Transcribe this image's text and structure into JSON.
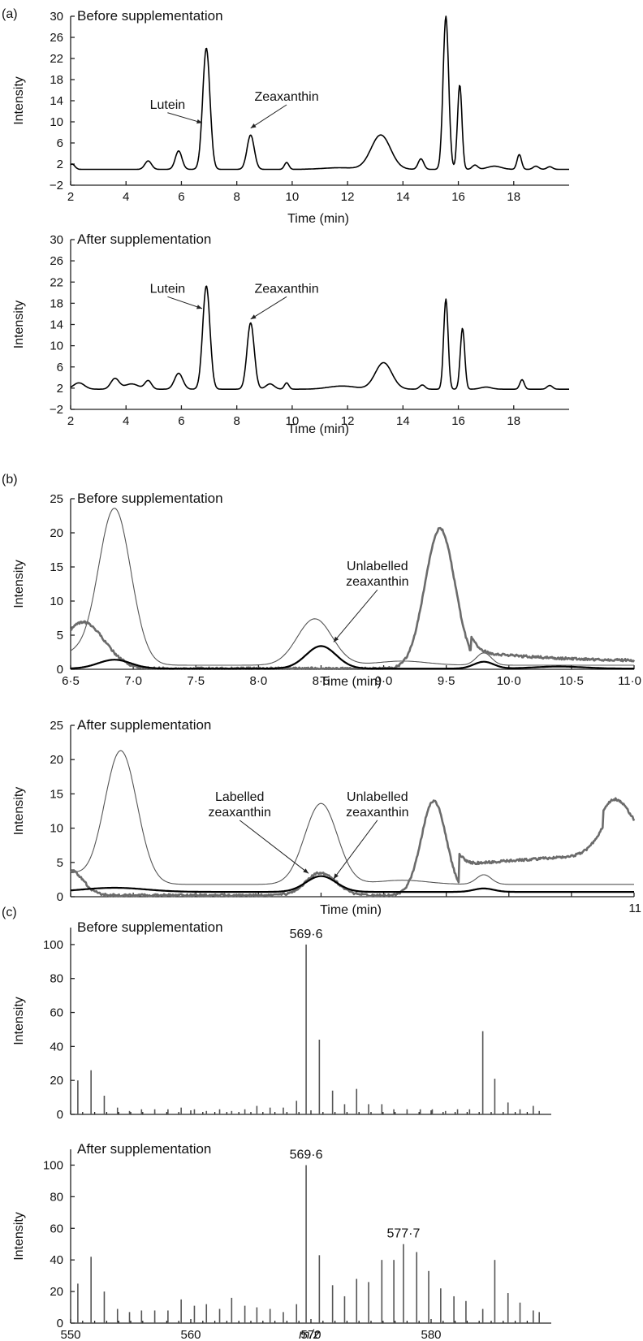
{
  "panel_labels": [
    "(a)",
    "(b)",
    "(c)"
  ],
  "colors": {
    "ink": "#111111",
    "thin_trace": "#555555",
    "thick_grey_trace": "#6b6b6b",
    "black_trace": "#000000"
  },
  "chart_data": [
    {
      "panel": "(a)",
      "type": "line",
      "title": "Before supplementation",
      "xlabel": "Time (min)",
      "ylabel": "Intensity",
      "xlim": [
        2,
        20
      ],
      "ylim": [
        -2,
        30
      ],
      "xticks": [
        2,
        4,
        6,
        8,
        10,
        12,
        14,
        16,
        18
      ],
      "yticks": [
        -2,
        2,
        6,
        10,
        14,
        18,
        22,
        26,
        30
      ],
      "xtick_labels": [
        "2",
        "4",
        "6",
        "8",
        "10",
        "12",
        "14",
        "16",
        "18"
      ],
      "ytick_labels": [
        "−2",
        "2",
        "6",
        "10",
        "14",
        "18",
        "22",
        "26",
        "30"
      ],
      "annotations": [
        {
          "text": "Lutein",
          "x": 6.9,
          "y": 24,
          "text_at": [
            5.5,
            12.5
          ],
          "arrow_to": [
            6.75,
            9.8
          ]
        },
        {
          "text": "Zeaxanthin",
          "x": 8.5,
          "y": 7.5,
          "text_at": [
            9.8,
            14
          ],
          "arrow_to": [
            8.5,
            8.8
          ]
        }
      ],
      "series": [
        {
          "style": "black",
          "baseline": 1.0,
          "peaks": [
            [
              2.05,
              1.0,
              0.1
            ],
            [
              4.8,
              1.6,
              0.12
            ],
            [
              5.9,
              3.5,
              0.12
            ],
            [
              6.9,
              23,
              0.13
            ],
            [
              8.5,
              6.5,
              0.13
            ],
            [
              9.8,
              1.3,
              0.08
            ],
            [
              11.7,
              0.3,
              0.6
            ],
            [
              13.2,
              6.5,
              0.35
            ],
            [
              14.65,
              2.0,
              0.1
            ],
            [
              15.55,
              29,
              0.1
            ],
            [
              16.05,
              16,
              0.08
            ],
            [
              16.6,
              0.8,
              0.1
            ],
            [
              17.3,
              0.6,
              0.25
            ],
            [
              18.2,
              2.8,
              0.08
            ],
            [
              18.8,
              0.6,
              0.1
            ],
            [
              19.3,
              0.5,
              0.1
            ]
          ]
        }
      ]
    },
    {
      "panel": "(a)",
      "type": "line",
      "title": "After supplementation",
      "xlabel": "Time (min)",
      "ylabel": "Intensity",
      "xlim": [
        2,
        20
      ],
      "ylim": [
        -2,
        30
      ],
      "xticks": [
        2,
        4,
        6,
        8,
        10,
        12,
        14,
        16,
        18
      ],
      "yticks": [
        -2,
        2,
        6,
        10,
        14,
        18,
        22,
        26,
        30
      ],
      "xtick_labels": [
        "2",
        "4",
        "6",
        "8",
        "10",
        "12",
        "14",
        "16",
        "18"
      ],
      "ytick_labels": [
        "−2",
        "2",
        "6",
        "10",
        "14",
        "18",
        "22",
        "26",
        "30"
      ],
      "annotations": [
        {
          "text": "Lutein",
          "x": 6.9,
          "y": 21,
          "text_at": [
            5.5,
            20
          ],
          "arrow_to": [
            6.75,
            17
          ]
        },
        {
          "text": "Zeaxanthin",
          "x": 8.5,
          "y": 14,
          "text_at": [
            9.8,
            20
          ],
          "arrow_to": [
            8.5,
            15
          ]
        }
      ],
      "series": [
        {
          "style": "black",
          "baseline": 1.8,
          "peaks": [
            [
              2.3,
              1.2,
              0.2
            ],
            [
              3.6,
              2.0,
              0.15
            ],
            [
              4.2,
              1.0,
              0.25
            ],
            [
              4.8,
              1.6,
              0.12
            ],
            [
              5.9,
              3.0,
              0.15
            ],
            [
              6.9,
              19.5,
              0.13
            ],
            [
              8.5,
              12.5,
              0.13
            ],
            [
              9.2,
              1.0,
              0.15
            ],
            [
              9.8,
              1.2,
              0.08
            ],
            [
              11.8,
              0.6,
              0.5
            ],
            [
              13.3,
              5.0,
              0.3
            ],
            [
              14.7,
              0.8,
              0.1
            ],
            [
              15.55,
              17,
              0.08
            ],
            [
              16.15,
              11.5,
              0.08
            ],
            [
              17.0,
              0.4,
              0.2
            ],
            [
              18.3,
              1.8,
              0.08
            ],
            [
              19.3,
              0.7,
              0.1
            ]
          ]
        }
      ]
    },
    {
      "panel": "(b)",
      "type": "line",
      "title": "Before supplementation",
      "xlabel": "Time (min)",
      "ylabel": "Intensity",
      "xlim": [
        6.5,
        11.0
      ],
      "ylim": [
        0,
        25
      ],
      "xticks": [
        6.5,
        7.0,
        7.5,
        8.0,
        8.5,
        9.0,
        9.5,
        10.0,
        10.5,
        11.0
      ],
      "yticks": [
        0,
        5,
        10,
        15,
        20,
        25
      ],
      "xtick_labels": [
        "6·5",
        "7·0",
        "7·5",
        "8·0",
        "8·5",
        "9·0",
        "9·5",
        "10·0",
        "10·5",
        "11·0"
      ],
      "ytick_labels": [
        "0",
        "5",
        "10",
        "15",
        "20",
        "25"
      ],
      "annotations": [
        {
          "text": "Unlabelled zeaxanthin",
          "x": 8.5,
          "y": 3.3,
          "text_at": [
            8.95,
            14.5
          ],
          "arrow_to": [
            8.6,
            4.0
          ]
        }
      ],
      "series": [
        {
          "style": "thin",
          "baseline": 0.6,
          "peaks": [
            [
              6.85,
              23,
              0.13
            ],
            [
              6.5,
              1.5,
              0.1
            ],
            [
              8.45,
              6.8,
              0.14
            ],
            [
              9.15,
              0.6,
              0.2
            ],
            [
              9.8,
              1.8,
              0.06
            ]
          ]
        },
        {
          "style": "thick",
          "baseline": 0.1,
          "peaks": [
            [
              6.6,
              6.8,
              0.17
            ],
            [
              9.45,
              20.5,
              0.12
            ]
          ],
          "tail": {
            "from": 9.7,
            "level": 2.5,
            "decay": 1.5,
            "floor": 1.0
          }
        },
        {
          "style": "black",
          "baseline": 0.1,
          "peaks": [
            [
              6.85,
              1.3,
              0.13
            ],
            [
              8.5,
              3.3,
              0.12
            ],
            [
              9.8,
              1.0,
              0.08
            ],
            [
              10.4,
              0.3,
              0.2
            ]
          ]
        }
      ]
    },
    {
      "panel": "(b)",
      "type": "line",
      "title": "After supplementation",
      "xlabel": "Time (min)",
      "ylabel": "Intensity",
      "xlim": [
        6.5,
        11.0
      ],
      "ylim": [
        0,
        25
      ],
      "xticks": [
        6.5,
        7.0,
        7.5,
        8.0,
        8.5,
        9.0,
        9.5,
        10.0,
        10.5,
        11.0
      ],
      "yticks": [
        0,
        5,
        10,
        15,
        20,
        25
      ],
      "xtick_labels": [
        "",
        "",
        "",
        "",
        "",
        "",
        "",
        "",
        "",
        "11"
      ],
      "ytick_labels": [
        "0",
        "5",
        "10",
        "15",
        "20",
        "25"
      ],
      "annotations": [
        {
          "text": "Labelled zeaxanthin",
          "x": 8.5,
          "y": 3.5,
          "text_at": [
            7.85,
            14
          ],
          "arrow_to": [
            8.4,
            3.4
          ]
        },
        {
          "text": "Unlabelled zeaxanthin",
          "x": 8.5,
          "y": 3.0,
          "text_at": [
            8.95,
            14
          ],
          "arrow_to": [
            8.6,
            2.6
          ]
        }
      ],
      "series": [
        {
          "style": "thin",
          "baseline": 1.8,
          "peaks": [
            [
              6.5,
              1.5,
              0.1
            ],
            [
              6.9,
              19.5,
              0.13
            ],
            [
              8.5,
              11.8,
              0.13
            ],
            [
              9.15,
              0.6,
              0.2
            ],
            [
              9.8,
              1.4,
              0.06
            ]
          ]
        },
        {
          "style": "thick",
          "baseline": 0.2,
          "peaks": [
            [
              6.5,
              3.6,
              0.1
            ],
            [
              8.5,
              3.3,
              0.12
            ],
            [
              9.4,
              13.8,
              0.1
            ],
            [
              10.85,
              5.5,
              0.12
            ]
          ],
          "tail": {
            "from": 9.6,
            "level": 4.5,
            "decay": 0,
            "floor": 4.5,
            "ramp_to": 6.0,
            "ramp_end": 10.75,
            "after": 8.5
          }
        },
        {
          "style": "black",
          "baseline": 0.7,
          "peaks": [
            [
              6.85,
              0.6,
              0.25
            ],
            [
              8.5,
              2.3,
              0.12
            ],
            [
              9.8,
              0.5,
              0.08
            ]
          ]
        }
      ]
    },
    {
      "panel": "(c)",
      "type": "bar",
      "title": "Before supplementation",
      "xlabel": "",
      "ylabel": "Intensity",
      "xlim": [
        550,
        590
      ],
      "ylim": [
        0,
        110
      ],
      "xticks": [
        550,
        560,
        570,
        580
      ],
      "yticks": [
        0,
        20,
        40,
        60,
        80,
        100
      ],
      "xtick_labels": [
        "",
        "",
        "",
        ""
      ],
      "ytick_labels": [
        "0",
        "20",
        "40",
        "60",
        "80",
        "100"
      ],
      "annotations": [
        {
          "text": "569·6",
          "x": 569.6,
          "y": 100
        }
      ],
      "x": [
        550.6,
        551.7,
        552.8,
        553.9,
        554.9,
        555.9,
        557.0,
        558.1,
        559.2,
        560.3,
        561.3,
        562.4,
        563.4,
        564.5,
        565.5,
        566.6,
        567.7,
        568.8,
        569.6,
        570.7,
        571.8,
        572.8,
        573.8,
        574.8,
        575.9,
        576.9,
        578.0,
        579.1,
        580.1,
        581.2,
        582.2,
        583.2,
        584.3,
        585.3,
        586.4,
        587.4,
        588.5,
        589.0
      ],
      "values": [
        20,
        26,
        11,
        4,
        2,
        3,
        3,
        3,
        4,
        3,
        2,
        3,
        2,
        3,
        5,
        4,
        4,
        8,
        100,
        44,
        14,
        6,
        15,
        6,
        6,
        3,
        3,
        3,
        3,
        2,
        3,
        3,
        49,
        21,
        7,
        3,
        5,
        2
      ]
    },
    {
      "panel": "(c)",
      "type": "bar",
      "title": "After supplementation",
      "xlabel": "m/z",
      "ylabel": "Intensity",
      "xlim": [
        550,
        590
      ],
      "ylim": [
        0,
        110
      ],
      "xticks": [
        550,
        560,
        570,
        580
      ],
      "yticks": [
        0,
        20,
        40,
        60,
        80,
        100
      ],
      "xtick_labels": [
        "550",
        "560",
        "570",
        "580"
      ],
      "ytick_labels": [
        "0",
        "20",
        "40",
        "60",
        "80",
        "100"
      ],
      "annotations": [
        {
          "text": "569·6",
          "x": 569.6,
          "y": 100
        },
        {
          "text": "577·7",
          "x": 577.7,
          "y": 50
        }
      ],
      "x": [
        550.6,
        551.7,
        552.8,
        553.9,
        554.9,
        555.9,
        557.0,
        558.1,
        559.2,
        560.3,
        561.3,
        562.4,
        563.4,
        564.5,
        565.5,
        566.6,
        567.7,
        568.8,
        569.6,
        570.7,
        571.8,
        572.8,
        573.8,
        574.8,
        575.9,
        576.9,
        577.7,
        578.8,
        579.8,
        580.8,
        581.9,
        582.9,
        584.3,
        585.3,
        586.4,
        587.4,
        588.5,
        589.0
      ],
      "values": [
        25,
        42,
        20,
        9,
        7,
        8,
        8,
        8,
        15,
        11,
        12,
        9,
        16,
        11,
        10,
        9,
        7,
        12,
        100,
        43,
        24,
        17,
        28,
        26,
        40,
        40,
        50,
        45,
        33,
        22,
        17,
        14,
        9,
        40,
        19,
        13,
        8,
        7
      ]
    }
  ]
}
